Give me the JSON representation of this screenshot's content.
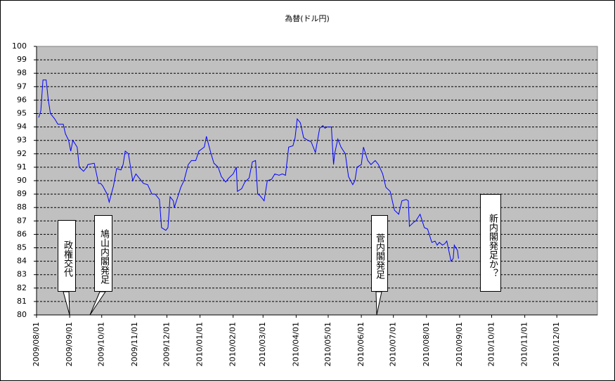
{
  "chart_data": {
    "type": "line",
    "title": "為替(ドル円)",
    "x": [
      "2009/08/03",
      "2009/08/05",
      "2009/08/07",
      "2009/08/10",
      "2009/08/12",
      "2009/08/14",
      "2009/08/18",
      "2009/08/21",
      "2009/08/26",
      "2009/08/28",
      "2009/08/31",
      "2009/09/02",
      "2009/09/04",
      "2009/09/08",
      "2009/09/10",
      "2009/09/14",
      "2009/09/17",
      "2009/09/18",
      "2009/09/24",
      "2009/09/28",
      "2009/09/30",
      "2009/10/02",
      "2009/10/06",
      "2009/10/08",
      "2009/10/12",
      "2009/10/15",
      "2009/10/19",
      "2009/10/21",
      "2009/10/23",
      "2009/10/26",
      "2009/10/28",
      "2009/10/30",
      "2009/11/02",
      "2009/11/05",
      "2009/11/09",
      "2009/11/13",
      "2009/11/17",
      "2009/11/20",
      "2009/11/24",
      "2009/11/26",
      "2009/11/30",
      "2009/12/02",
      "2009/12/04",
      "2009/12/07",
      "2009/12/08",
      "2009/12/10",
      "2009/12/14",
      "2009/12/17",
      "2009/12/21",
      "2009/12/24",
      "2009/12/28",
      "2009/12/31",
      "2010/01/05",
      "2010/01/07",
      "2010/01/11",
      "2010/01/14",
      "2010/01/18",
      "2010/01/21",
      "2010/01/25",
      "2010/01/28",
      "2010/02/01",
      "2010/02/04",
      "2010/02/05",
      "2010/02/09",
      "2010/02/12",
      "2010/02/16",
      "2010/02/19",
      "2010/02/22",
      "2010/02/24",
      "2010/02/26",
      "2010/03/02",
      "2010/03/05",
      "2010/03/09",
      "2010/03/12",
      "2010/03/16",
      "2010/03/19",
      "2010/03/22",
      "2010/03/25",
      "2010/03/29",
      "2010/03/31",
      "2010/04/02",
      "2010/04/05",
      "2010/04/08",
      "2010/04/12",
      "2010/04/15",
      "2010/04/19",
      "2010/04/21",
      "2010/04/23",
      "2010/04/26",
      "2010/04/28",
      "2010/04/30",
      "2010/05/04",
      "2010/05/06",
      "2010/05/07",
      "2010/05/10",
      "2010/05/13",
      "2010/05/17",
      "2010/05/20",
      "2010/05/24",
      "2010/05/26",
      "2010/05/28",
      "2010/06/01",
      "2010/06/03",
      "2010/06/07",
      "2010/06/10",
      "2010/06/14",
      "2010/06/17",
      "2010/06/21",
      "2010/06/24",
      "2010/06/28",
      "2010/06/30",
      "2010/07/02",
      "2010/07/06",
      "2010/07/09",
      "2010/07/13",
      "2010/07/15",
      "2010/07/16",
      "2010/07/20",
      "2010/07/22",
      "2010/07/26",
      "2010/07/28",
      "2010/07/30",
      "2010/08/02",
      "2010/08/04",
      "2010/08/06",
      "2010/08/09",
      "2010/08/11",
      "2010/08/13",
      "2010/08/16",
      "2010/08/18",
      "2010/08/20",
      "2010/08/24",
      "2010/08/26",
      "2010/08/27",
      "2010/08/30",
      "2010/08/31"
    ],
    "series": [
      {
        "color": "#0000ff",
        "values": [
          94.7,
          95.2,
          97.5,
          97.5,
          96,
          95,
          94.6,
          94.2,
          94.2,
          93.5,
          93,
          92.2,
          93,
          92.5,
          91,
          90.7,
          91,
          91.2,
          91.3,
          89.8,
          89.8,
          89.6,
          89,
          88.4,
          89.6,
          90.9,
          90.8,
          91.2,
          92.2,
          92,
          91,
          90,
          90.5,
          90.2,
          89.8,
          89.7,
          89,
          89,
          88.6,
          86.5,
          86.3,
          86.5,
          88.8,
          88.5,
          88,
          88.5,
          89.5,
          90,
          91.2,
          91.5,
          91.5,
          92.2,
          92.5,
          93.3,
          92.1,
          91.3,
          91,
          90.3,
          89.9,
          90.2,
          90.5,
          91,
          89.2,
          89.4,
          89.9,
          90.2,
          91.4,
          91.5,
          89,
          88.9,
          88.5,
          90,
          90.1,
          90.5,
          90.4,
          90.5,
          90.4,
          92.5,
          92.6,
          93.2,
          94.6,
          94.3,
          93.2,
          93,
          92.9,
          92.1,
          93,
          93.9,
          94.1,
          93.9,
          94,
          94,
          91.2,
          92,
          93.1,
          92.5,
          92,
          90.3,
          89.7,
          90,
          91,
          91.2,
          92.5,
          91.5,
          91.2,
          91.5,
          91.2,
          90.5,
          89.5,
          89.2,
          88.5,
          87.8,
          87.5,
          88.5,
          88.6,
          88.5,
          86.6,
          86.9,
          87,
          87.5,
          87,
          86.5,
          86.4,
          85.9,
          85.4,
          85.5,
          85.2,
          85.4,
          85.2,
          85.3,
          85.5,
          84,
          84.2,
          85.2,
          84.8,
          84.2
        ]
      }
    ],
    "xlim": [
      "2009/08/01",
      "2011/01/08"
    ],
    "xticks": [
      "2009/08/01",
      "2009/09/01",
      "2009/10/01",
      "2009/11/01",
      "2009/12/01",
      "2010/01/01",
      "2010/02/01",
      "2010/03/01",
      "2010/04/01",
      "2010/05/01",
      "2010/06/01",
      "2010/07/01",
      "2010/08/01",
      "2010/09/01",
      "2010/10/01",
      "2010/11/01",
      "2010/12/01"
    ],
    "ylim": [
      80,
      100
    ],
    "yticks": [
      80,
      81,
      82,
      83,
      84,
      85,
      86,
      87,
      88,
      89,
      90,
      91,
      92,
      93,
      94,
      95,
      96,
      97,
      98,
      99,
      100
    ],
    "grid": true,
    "annotations": [
      "政権交代",
      "鳩山内閣発足",
      "菅内閣発足",
      "新内閣発足か？"
    ]
  }
}
